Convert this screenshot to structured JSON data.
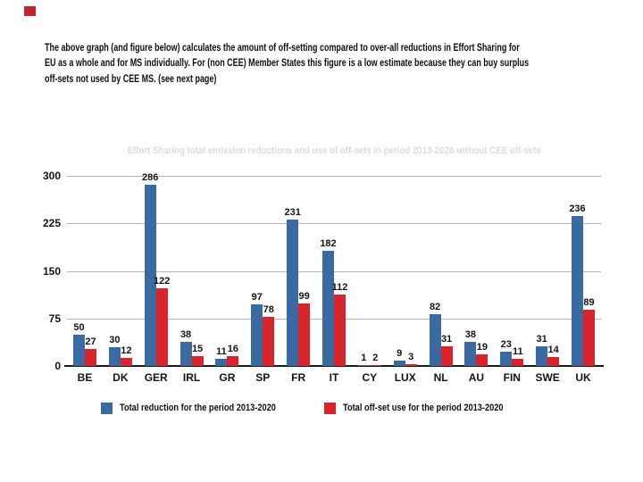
{
  "page": {
    "corner_marker_color": "#c2242b"
  },
  "intro": {
    "lines": [
      "The above graph (and figure below) calculates the amount of off-setting compared to over-all reductions in Effort Sharing for",
      "EU as a whole and for MS individually. For (non CEE) Member States this figure is a low estimate because they can buy surplus",
      "off-sets not used by CEE MS. (see next page)"
    ]
  },
  "chart_data": {
    "type": "bar",
    "title": "Effort Sharing total emission reductions and use of off-sets in period 2013-2020 without CEE off-sets",
    "title_color": "#dcdcdc",
    "categories": [
      "BE",
      "DK",
      "GER",
      "IRL",
      "GR",
      "SP",
      "FR",
      "IT",
      "CY",
      "LUX",
      "NL",
      "AU",
      "FIN",
      "SWE",
      "UK"
    ],
    "series": [
      {
        "name": "Total reduction for the period 2013-2020",
        "color": "#3a6aa2",
        "values": [
          50,
          30,
          286,
          38,
          11,
          97,
          231,
          182,
          1,
          9,
          82,
          38,
          23,
          31,
          236
        ]
      },
      {
        "name": "Total off-set use for the period 2013-2020",
        "color": "#d9242b",
        "values": [
          27,
          12,
          122,
          15,
          16,
          78,
          99,
          112,
          2,
          3,
          31,
          19,
          11,
          14,
          89
        ]
      }
    ],
    "xlabel": "",
    "ylabel": "",
    "ylim": [
      0,
      300
    ],
    "yticks": [
      0,
      75,
      150,
      225,
      300
    ],
    "grid": true,
    "gridline_color": "#b5b5b5",
    "value_labels": true,
    "legend_position": "bottom"
  }
}
